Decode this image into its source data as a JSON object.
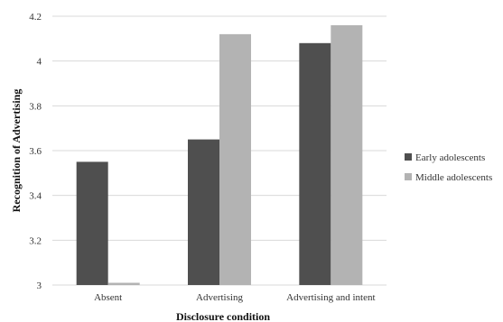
{
  "chart_data": {
    "type": "bar",
    "xlabel": "Disclosure condition",
    "ylabel": "Recognition of Advertising",
    "categories": [
      "Absent",
      "Advertising",
      "Advertising and intent"
    ],
    "series": [
      {
        "name": "Early adolescents",
        "values": [
          3.55,
          3.65,
          4.08
        ],
        "color": "#4f4f4f"
      },
      {
        "name": "Middle adolescents",
        "values": [
          3.01,
          4.12,
          4.16
        ],
        "color": "#b3b3b3"
      }
    ],
    "ylim": [
      3,
      4.2
    ],
    "yticks": [
      "3",
      "3.2",
      "3.4",
      "3.6",
      "3.8",
      "4",
      "4.2"
    ],
    "grid": true,
    "legend_position": "right",
    "gridline_color": "#d9d9d9"
  }
}
